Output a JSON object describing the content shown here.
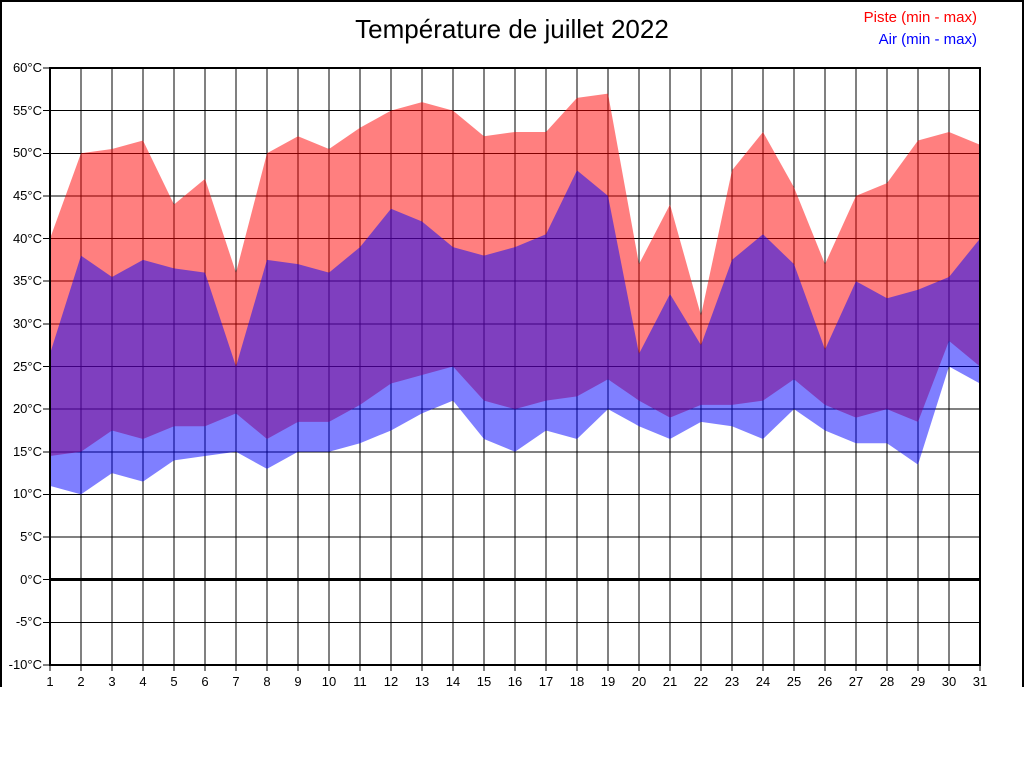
{
  "title": "Température de juillet 2022",
  "legend": {
    "piste": {
      "label": "Piste (min - max)",
      "color": "#ff0000"
    },
    "air": {
      "label": "Air (min - max)",
      "color": "#0000ff"
    }
  },
  "chart_data": {
    "type": "area",
    "title": "Température de juillet 2022",
    "xlabel": "",
    "ylabel": "",
    "x": [
      1,
      2,
      3,
      4,
      5,
      6,
      7,
      8,
      9,
      10,
      11,
      12,
      13,
      14,
      15,
      16,
      17,
      18,
      19,
      20,
      21,
      22,
      23,
      24,
      25,
      26,
      27,
      28,
      29,
      30,
      31
    ],
    "xtick_labels": [
      "1",
      "2",
      "3",
      "4",
      "5",
      "6",
      "7",
      "8",
      "9",
      "10",
      "11",
      "12",
      "13",
      "14",
      "15",
      "16",
      "17",
      "18",
      "19",
      "20",
      "21",
      "22",
      "23",
      "24",
      "25",
      "26",
      "27",
      "28",
      "29",
      "30",
      "31"
    ],
    "ylim": [
      -10,
      60
    ],
    "ytick_step": 5,
    "ytick_labels": [
      "60°C",
      "55°C",
      "50°C",
      "45°C",
      "40°C",
      "35°C",
      "30°C",
      "25°C",
      "20°C",
      "15°C",
      "10°C",
      "5°C",
      "0°C",
      "-5°C",
      "-10°C"
    ],
    "grid": true,
    "zero_line": true,
    "legend_position": "top-right",
    "series": [
      {
        "name": "Piste (min - max)",
        "color": "#ff0000",
        "fill_opacity": 0.5,
        "max": [
          40,
          50,
          50.5,
          51.5,
          44,
          47,
          36,
          50,
          52,
          50.5,
          53,
          55,
          56,
          55,
          52,
          52.5,
          52.5,
          56.5,
          57,
          37,
          44,
          31,
          48,
          52.5,
          46,
          37,
          45,
          46.5,
          51.5,
          52.5,
          51
        ],
        "min": [
          14.5,
          15,
          17.5,
          16.5,
          18,
          18,
          19.5,
          16.5,
          18.5,
          18.5,
          20.5,
          23,
          24,
          25,
          21,
          20,
          21,
          21.5,
          23.5,
          21,
          19,
          20.5,
          20.5,
          21,
          23.5,
          20.5,
          19,
          20,
          18.5,
          28,
          25
        ]
      },
      {
        "name": "Air (min - max)",
        "color": "#0000ff",
        "fill_opacity": 0.5,
        "max": [
          26.5,
          38,
          35.5,
          37.5,
          36.5,
          36,
          25,
          37.5,
          37,
          36,
          39,
          43.5,
          42,
          39,
          38,
          39,
          40.5,
          48,
          45,
          26.5,
          33.5,
          27.5,
          37.5,
          40.5,
          37,
          27,
          35,
          33,
          34,
          35.5,
          40
        ],
        "min": [
          11,
          10,
          12.5,
          11.5,
          14,
          14.5,
          15,
          13,
          15,
          15,
          16,
          17.5,
          19.5,
          21,
          16.5,
          15,
          17.5,
          16.5,
          20,
          18,
          16.5,
          18.5,
          18,
          16.5,
          20,
          17.5,
          16,
          16,
          13.5,
          25,
          23
        ]
      }
    ]
  }
}
